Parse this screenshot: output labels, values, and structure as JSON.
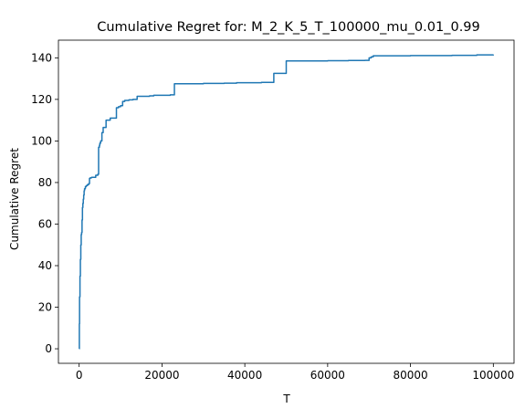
{
  "chart_data": {
    "type": "line",
    "title": "Cumulative Regret for: M_2_K_5_T_100000_mu_0.01_0.99",
    "xlabel": "T",
    "ylabel": "Cumulative Regret",
    "xlim": [
      -5000,
      105000
    ],
    "ylim": [
      -7,
      148.5
    ],
    "xticks": [
      0,
      20000,
      40000,
      60000,
      80000,
      100000
    ],
    "yticks": [
      0,
      20,
      40,
      60,
      80,
      100,
      120,
      140
    ],
    "grid": false,
    "line_color": "#1f77b4",
    "series": [
      {
        "x": [
          0,
          50,
          100,
          200,
          300,
          400,
          500,
          600,
          700,
          800,
          900,
          1000,
          1100,
          1200,
          1300,
          1500,
          1700,
          2000,
          2300,
          2500,
          2700,
          3000,
          3500,
          4000,
          4500,
          4700,
          4900,
          5000,
          5200,
          5500,
          5800,
          6000,
          6500,
          7000,
          7500,
          8000,
          8500,
          9000,
          9500,
          10000,
          10500,
          11000,
          12000,
          13000,
          14000,
          15000,
          16000,
          17000,
          18000,
          20000,
          22000,
          23000,
          26000,
          30000,
          35000,
          38000,
          40000,
          44000,
          47000,
          48000,
          50000,
          55000,
          60000,
          65000,
          69000,
          70000,
          70500,
          71000,
          80000,
          90000,
          96000,
          100000
        ],
        "y": [
          0,
          12,
          25,
          35,
          43,
          50,
          55,
          56,
          62,
          68,
          70,
          72,
          74,
          76,
          77,
          78,
          78.5,
          79,
          79.5,
          82,
          82.3,
          82.5,
          82.5,
          83.5,
          84,
          97,
          98,
          99,
          100,
          104,
          106.5,
          106.5,
          110,
          110,
          111,
          111,
          111,
          116,
          116.5,
          117,
          119,
          119.5,
          119.8,
          120,
          121.5,
          121.5,
          121.5,
          121.7,
          122,
          122,
          122.2,
          127.5,
          127.5,
          127.7,
          127.8,
          128,
          128,
          128.2,
          132.5,
          132.5,
          138.5,
          138.5,
          138.6,
          138.7,
          138.8,
          140,
          140.5,
          141,
          141.1,
          141.2,
          141.4,
          141.6
        ]
      }
    ]
  }
}
